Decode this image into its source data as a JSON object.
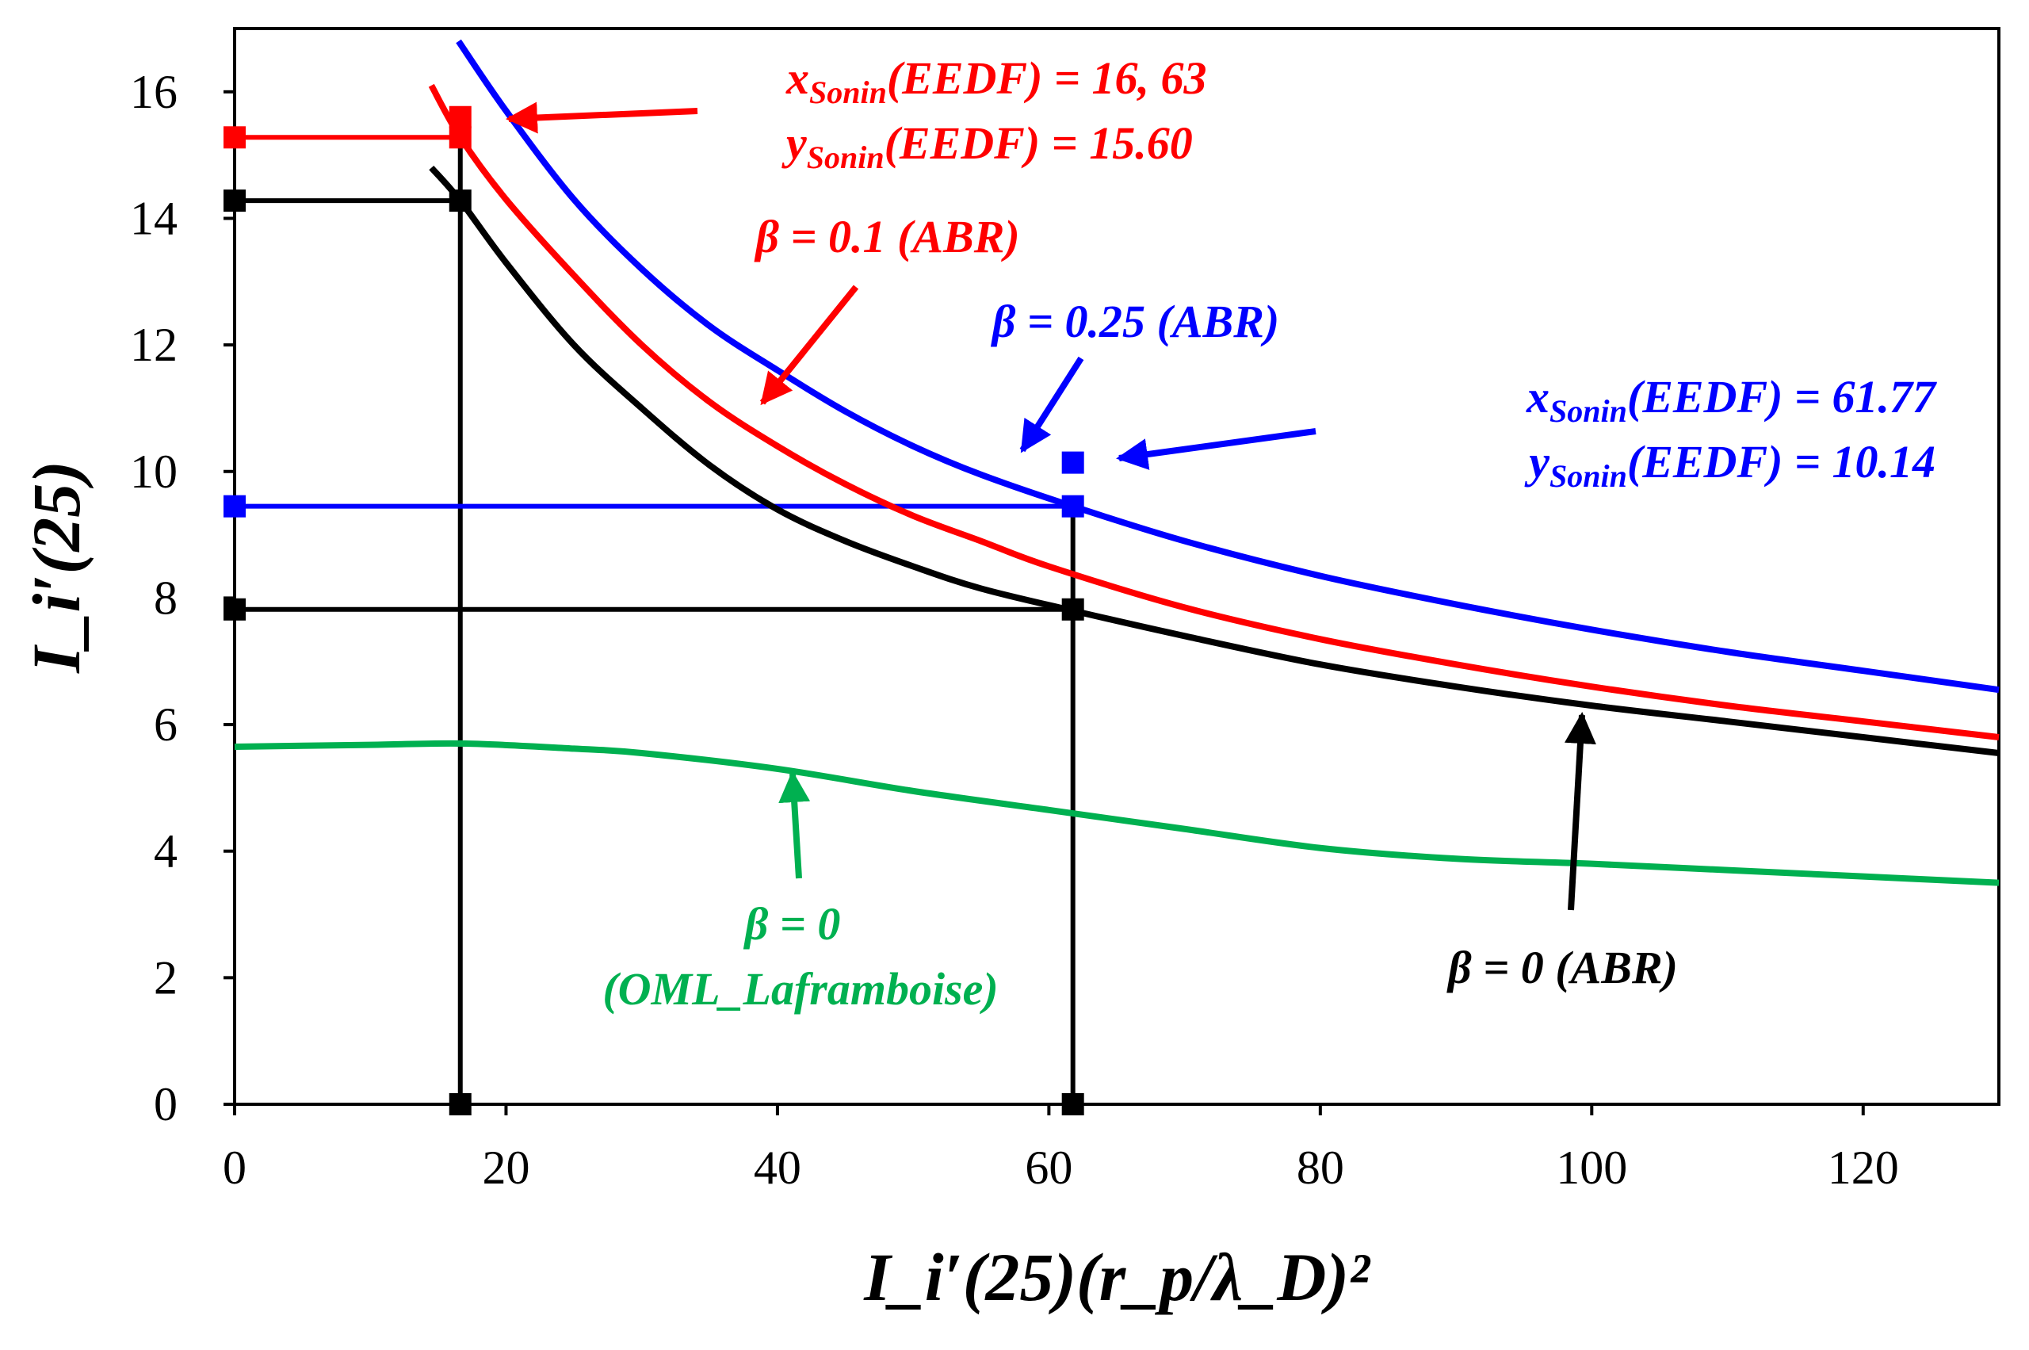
{
  "chart_data": {
    "type": "line",
    "title": "",
    "xlabel": "I_i′(25)(r_p/λ_D)²",
    "ylabel": "I_i′(25)",
    "xlim": [
      0,
      130
    ],
    "ylim": [
      0,
      17
    ],
    "xticks": [
      "0",
      "20",
      "40",
      "60",
      "80",
      "100",
      "120"
    ],
    "yticks": [
      "0",
      "2",
      "4",
      "6",
      "8",
      "10",
      "12",
      "14",
      "16"
    ],
    "grid": false,
    "series": [
      {
        "name": "β = 0.25 (ABR)",
        "color": "#0000ff",
        "x": [
          16.5,
          20,
          25,
          30,
          35,
          40,
          45,
          50,
          55,
          61.77,
          70,
          80,
          90,
          100,
          110,
          120,
          130
        ],
        "y": [
          16.8,
          15.7,
          14.3,
          13.2,
          12.3,
          11.6,
          10.95,
          10.4,
          9.95,
          9.45,
          8.9,
          8.35,
          7.9,
          7.5,
          7.15,
          6.85,
          6.55
        ]
      },
      {
        "name": "β = 0.1 (ABR)",
        "color": "#ff0000",
        "x": [
          14.5,
          16.63,
          20,
          25,
          30,
          35,
          40,
          45,
          50,
          55,
          60,
          70,
          80,
          90,
          100,
          110,
          120,
          130
        ],
        "y": [
          16.1,
          15.28,
          14.3,
          13.1,
          12.0,
          11.1,
          10.4,
          9.8,
          9.3,
          8.9,
          8.5,
          7.85,
          7.35,
          6.95,
          6.6,
          6.3,
          6.05,
          5.8
        ]
      },
      {
        "name": "β = 0 (ABR)",
        "color": "#000000",
        "x": [
          14.5,
          16.63,
          20,
          25,
          30,
          35,
          40,
          45,
          50,
          55,
          61.77,
          70,
          80,
          90,
          100,
          110,
          120,
          130
        ],
        "y": [
          14.8,
          14.28,
          13.3,
          12.0,
          11.0,
          10.1,
          9.4,
          8.9,
          8.5,
          8.15,
          7.8,
          7.4,
          6.95,
          6.6,
          6.3,
          6.05,
          5.8,
          5.55
        ]
      },
      {
        "name": "β = 0 (OML_Laframboise)",
        "color": "#00b050",
        "x": [
          0,
          10,
          17,
          25,
          30,
          40,
          50,
          60,
          70,
          80,
          90,
          100,
          110,
          120,
          130
        ],
        "y": [
          5.65,
          5.68,
          5.7,
          5.62,
          5.55,
          5.3,
          4.95,
          4.65,
          4.35,
          4.05,
          3.88,
          3.8,
          3.7,
          3.6,
          3.5
        ]
      }
    ],
    "markers": [
      {
        "color": "#ff0000",
        "x": 0,
        "y": 15.28
      },
      {
        "color": "#ff0000",
        "x": 16.63,
        "y": 15.28
      },
      {
        "color": "#ff0000",
        "x": 16.63,
        "y": 15.6
      },
      {
        "color": "#000000",
        "x": 0,
        "y": 14.28
      },
      {
        "color": "#000000",
        "x": 16.63,
        "y": 14.28
      },
      {
        "color": "#000000",
        "x": 16.63,
        "y": 0
      },
      {
        "color": "#0000ff",
        "x": 0,
        "y": 9.45
      },
      {
        "color": "#0000ff",
        "x": 61.77,
        "y": 9.45
      },
      {
        "color": "#0000ff",
        "x": 61.77,
        "y": 10.14
      },
      {
        "color": "#000000",
        "x": 0,
        "y": 7.82
      },
      {
        "color": "#000000",
        "x": 61.77,
        "y": 7.82
      },
      {
        "color": "#000000",
        "x": 61.77,
        "y": 0
      }
    ],
    "guide_lines": [
      {
        "color": "#ff0000",
        "points": [
          [
            0,
            15.28
          ],
          [
            16.63,
            15.28
          ]
        ]
      },
      {
        "color": "#000000",
        "points": [
          [
            0,
            14.28
          ],
          [
            16.63,
            14.28
          ]
        ]
      },
      {
        "color": "#000000",
        "points": [
          [
            16.63,
            15.2
          ],
          [
            16.63,
            0
          ]
        ]
      },
      {
        "color": "#0000ff",
        "points": [
          [
            0,
            9.45
          ],
          [
            61.77,
            9.45
          ]
        ]
      },
      {
        "color": "#000000",
        "points": [
          [
            0,
            7.82
          ],
          [
            61.77,
            7.82
          ]
        ]
      },
      {
        "color": "#000000",
        "points": [
          [
            61.77,
            9.5
          ],
          [
            61.77,
            0
          ]
        ]
      }
    ],
    "annotations": {
      "sonin_red_x": {
        "prefix": "x",
        "sub": "Sonin",
        "suffix": "(EEDF) = 16, 63",
        "color": "#ff0000"
      },
      "sonin_red_y": {
        "prefix": "y",
        "sub": "Sonin",
        "suffix": "(EEDF) = 15.60",
        "color": "#ff0000"
      },
      "beta_red": {
        "text": "β = 0.1 (ABR)",
        "color": "#ff0000"
      },
      "beta_blue": {
        "text": "β = 0.25 (ABR)",
        "color": "#0000ff"
      },
      "sonin_blue_x": {
        "prefix": "x",
        "sub": "Sonin",
        "suffix": "(EEDF) = 61.77",
        "color": "#0000ff"
      },
      "sonin_blue_y": {
        "prefix": "y",
        "sub": "Sonin",
        "suffix": "(EEDF) = 10.14",
        "color": "#0000ff"
      },
      "beta_green_1": {
        "text": "β = 0",
        "color": "#00b050"
      },
      "beta_green_2": {
        "text": "(OML_Laframboise)",
        "color": "#00b050"
      },
      "beta_black": {
        "text": "β = 0 (ABR)",
        "color": "#000000"
      }
    }
  }
}
